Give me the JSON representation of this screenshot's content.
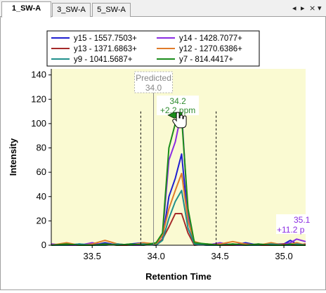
{
  "tabs": [
    {
      "label": "1_SW-A",
      "active": true
    },
    {
      "label": "3_SW-A",
      "active": false
    },
    {
      "label": "5_SW-A",
      "active": false
    }
  ],
  "controls": {
    "prev": "◂",
    "next": "▸",
    "close": "×",
    "menu": "▾"
  },
  "chart_data": {
    "type": "line",
    "title": "",
    "xlabel": "Retention Time",
    "ylabel": "Intensity",
    "xlim": [
      33.18,
      35.17
    ],
    "ylim": [
      0,
      145
    ],
    "xticks": [
      33.5,
      34.0,
      34.5,
      35.0
    ],
    "xtick_labels": [
      "33.5",
      "34.0",
      "34.5",
      "35.0"
    ],
    "yticks": [
      0,
      20,
      40,
      60,
      80,
      100,
      120,
      140
    ],
    "ytick_labels": [
      "0",
      "20",
      "40",
      "60",
      "80",
      "100",
      "120",
      "140"
    ],
    "legend_position": "top",
    "background": "#fafad2",
    "integration_bounds": [
      33.88,
      34.47
    ],
    "predicted": {
      "x": 33.98,
      "label1": "Predicted",
      "label2": "34.0"
    },
    "peak_annotation": {
      "x": 34.17,
      "y": 100,
      "label1": "34.2",
      "label2": "+2.2 ppm",
      "color": "#2e8b2e"
    },
    "edge_annotation": {
      "label1": "35.1",
      "label2": "+11.2 p",
      "color": "#8a2be2"
    },
    "series": [
      {
        "name": "y15 - 1557.7503+",
        "color": "#1f1fd0",
        "x": [
          33.18,
          33.3,
          33.4,
          33.5,
          33.6,
          33.7,
          33.8,
          33.9,
          34.0,
          34.05,
          34.1,
          34.15,
          34.2,
          34.25,
          34.3,
          34.4,
          34.5,
          34.6,
          34.7,
          34.8,
          34.9,
          35.0,
          35.05,
          35.1,
          35.17
        ],
        "y": [
          0,
          0,
          1,
          0,
          2,
          0,
          1,
          2,
          0,
          5,
          40,
          55,
          75,
          20,
          2,
          0,
          1,
          0,
          2,
          0,
          1,
          1,
          4,
          1,
          0
        ]
      },
      {
        "name": "y14 - 1428.7077+",
        "color": "#8a2be2",
        "x": [
          33.18,
          33.3,
          33.4,
          33.5,
          33.6,
          33.7,
          33.8,
          33.9,
          34.0,
          34.05,
          34.1,
          34.15,
          34.2,
          34.25,
          34.3,
          34.4,
          34.5,
          34.6,
          34.7,
          34.8,
          34.9,
          35.0,
          35.05,
          35.1,
          35.17
        ],
        "y": [
          1,
          0,
          0,
          2,
          0,
          1,
          0,
          0,
          1,
          8,
          70,
          85,
          110,
          25,
          1,
          0,
          2,
          0,
          0,
          1,
          0,
          1,
          2,
          5,
          3
        ]
      },
      {
        "name": "y13 - 1371.6863+",
        "color": "#a52a2a",
        "x": [
          33.18,
          33.3,
          33.4,
          33.5,
          33.6,
          33.7,
          33.8,
          33.9,
          34.0,
          34.05,
          34.1,
          34.15,
          34.2,
          34.25,
          34.3,
          34.4,
          34.5,
          34.6,
          34.7,
          34.8,
          34.9,
          35.0,
          35.05,
          35.1,
          35.17
        ],
        "y": [
          0,
          1,
          0,
          0,
          1,
          0,
          0,
          1,
          0,
          5,
          15,
          26,
          26,
          10,
          0,
          1,
          0,
          0,
          1,
          0,
          0,
          1,
          0,
          0,
          1
        ]
      },
      {
        "name": "y12 - 1270.6386+",
        "color": "#e07b2a",
        "x": [
          33.18,
          33.3,
          33.4,
          33.5,
          33.6,
          33.7,
          33.8,
          33.9,
          34.0,
          34.05,
          34.1,
          34.15,
          34.2,
          34.25,
          34.3,
          34.4,
          34.5,
          34.6,
          34.7,
          34.8,
          34.9,
          35.0,
          35.05,
          35.1,
          35.17
        ],
        "y": [
          0,
          2,
          0,
          1,
          4,
          1,
          0,
          2,
          1,
          8,
          30,
          45,
          59,
          20,
          3,
          0,
          1,
          3,
          1,
          0,
          2,
          0,
          1,
          2,
          0
        ]
      },
      {
        "name": "y9 - 1041.5687+",
        "color": "#20908c",
        "x": [
          33.18,
          33.3,
          33.4,
          33.5,
          33.6,
          33.7,
          33.8,
          33.9,
          34.0,
          34.05,
          34.1,
          34.15,
          34.2,
          34.25,
          34.3,
          34.4,
          34.5,
          34.6,
          34.7,
          34.8,
          34.9,
          35.0,
          35.05,
          35.1,
          35.17
        ],
        "y": [
          0,
          0,
          1,
          0,
          0,
          1,
          0,
          1,
          0,
          4,
          22,
          36,
          45,
          14,
          1,
          0,
          0,
          1,
          0,
          0,
          1,
          0,
          0,
          1,
          0
        ]
      },
      {
        "name": "y7 - 814.4417+",
        "color": "#1a8c1a",
        "x": [
          33.18,
          33.3,
          33.4,
          33.5,
          33.6,
          33.7,
          33.8,
          33.9,
          34.0,
          34.05,
          34.1,
          34.15,
          34.2,
          34.25,
          34.3,
          34.4,
          34.5,
          34.6,
          34.7,
          34.8,
          34.9,
          35.0,
          35.05,
          35.1,
          35.17
        ],
        "y": [
          0,
          1,
          0,
          0,
          1,
          0,
          1,
          0,
          2,
          10,
          80,
          100,
          105,
          30,
          2,
          1,
          0,
          1,
          0,
          1,
          0,
          0,
          1,
          0,
          0
        ]
      }
    ]
  }
}
